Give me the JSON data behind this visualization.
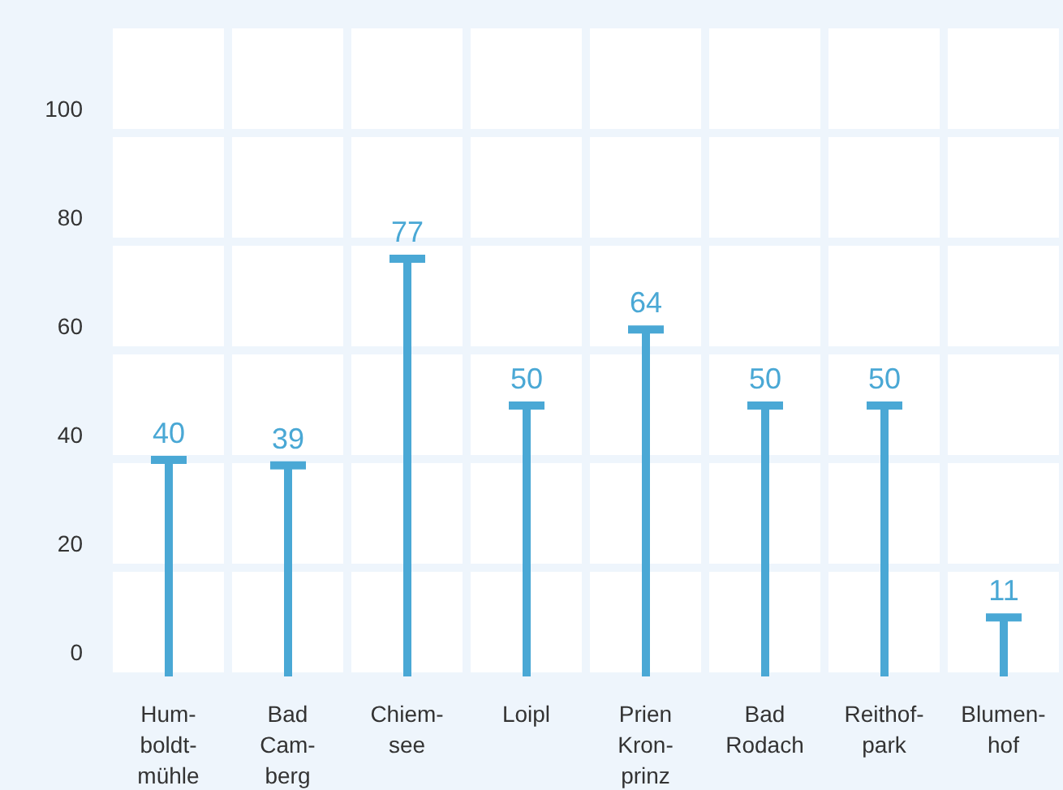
{
  "chart_data": {
    "type": "bar",
    "categories": [
      "Hum-boldt-mühle",
      "Bad Cam-berg",
      "Chiem-see",
      "Loipl",
      "Prien Kron-prinz",
      "Bad Rodach",
      "Reithof-park",
      "Blumen-hof"
    ],
    "values": [
      40,
      39,
      77,
      50,
      64,
      50,
      50,
      11
    ],
    "color": "#4aa8d5",
    "ylim": [
      0,
      120
    ],
    "yticks": [
      0,
      20,
      40,
      60,
      80,
      100
    ],
    "grid": true,
    "data_labels": true
  }
}
